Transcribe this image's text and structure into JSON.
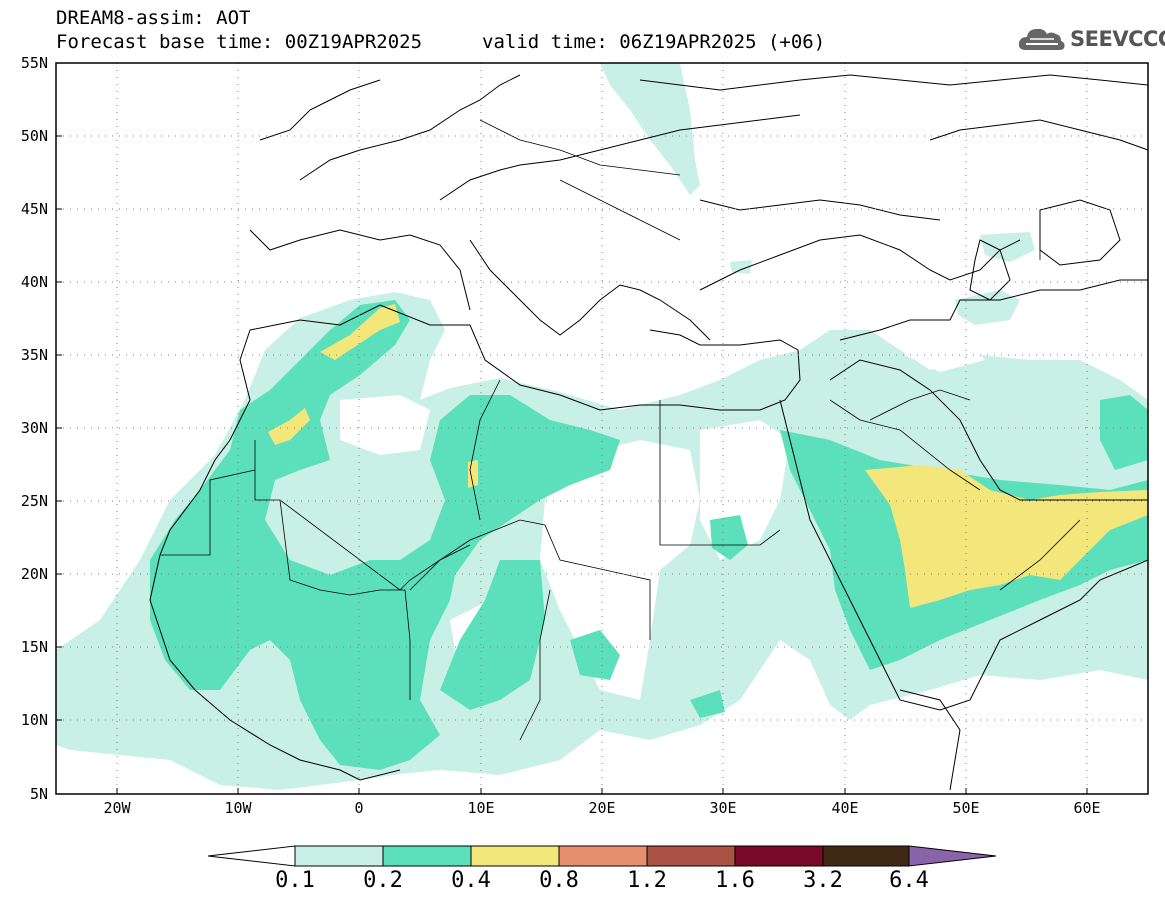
{
  "header": {
    "title": "DREAM8-assim: AOT",
    "base_time": "Forecast base time: 00Z19APR2025",
    "valid_time": "valid time: 06Z19APR2025 (+06)"
  },
  "logo": {
    "text": "SEEVCCC",
    "icon": "cloud-icon"
  },
  "map": {
    "lat_labels": [
      "55N",
      "50N",
      "45N",
      "40N",
      "35N",
      "30N",
      "25N",
      "20N",
      "15N",
      "10N",
      "5N"
    ],
    "lon_labels": [
      "20W",
      "10W",
      "0",
      "10E",
      "20E",
      "30E",
      "40E",
      "50E",
      "60E"
    ],
    "lat_range": [
      5,
      55
    ],
    "lon_range": [
      -25,
      65
    ],
    "grid": "dotted"
  },
  "colorbar": {
    "labels": [
      "0.1",
      "0.2",
      "0.4",
      "0.8",
      "1.2",
      "1.6",
      "3.2",
      "6.4"
    ],
    "colors": [
      "#ffffff",
      "#c8f0e6",
      "#5ce0bb",
      "#f3e67a",
      "#e79070",
      "#aa5244",
      "#780a28",
      "#3e2a14",
      "#8a64a8"
    ]
  },
  "field_colors": {
    "low": "#c8f0e6",
    "mid": "#5ce0bb",
    "high": "#f3e67a"
  }
}
